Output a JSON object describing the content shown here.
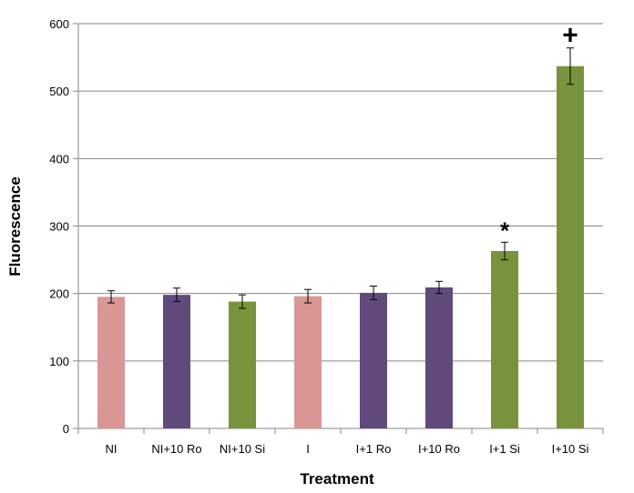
{
  "chart_data": {
    "type": "bar",
    "xlabel": "Treatment",
    "ylabel": "Fluorescence",
    "ylim": [
      0,
      600
    ],
    "yticks": [
      0,
      100,
      200,
      300,
      400,
      500,
      600
    ],
    "grid": true,
    "categories": [
      "NI",
      "NI+10 Ro",
      "NI+10 Si",
      "I",
      "I+1 Ro",
      "I+10 Ro",
      "I+1 Si",
      "I+10 Si"
    ],
    "values": [
      195,
      198,
      188,
      196,
      201,
      209,
      263,
      537
    ],
    "errors": [
      9,
      10,
      10,
      10,
      10,
      9,
      13,
      27
    ],
    "bar_colors": [
      "#d99694",
      "#604a7b",
      "#77933c",
      "#d99694",
      "#604a7b",
      "#604a7b",
      "#77933c",
      "#77933c"
    ],
    "annotations": [
      {
        "category": "I+1 Si",
        "text": "*"
      },
      {
        "category": "I+10 Si",
        "text": "+"
      }
    ]
  },
  "colors": {
    "grid": "#868686",
    "axis": "#868686"
  }
}
